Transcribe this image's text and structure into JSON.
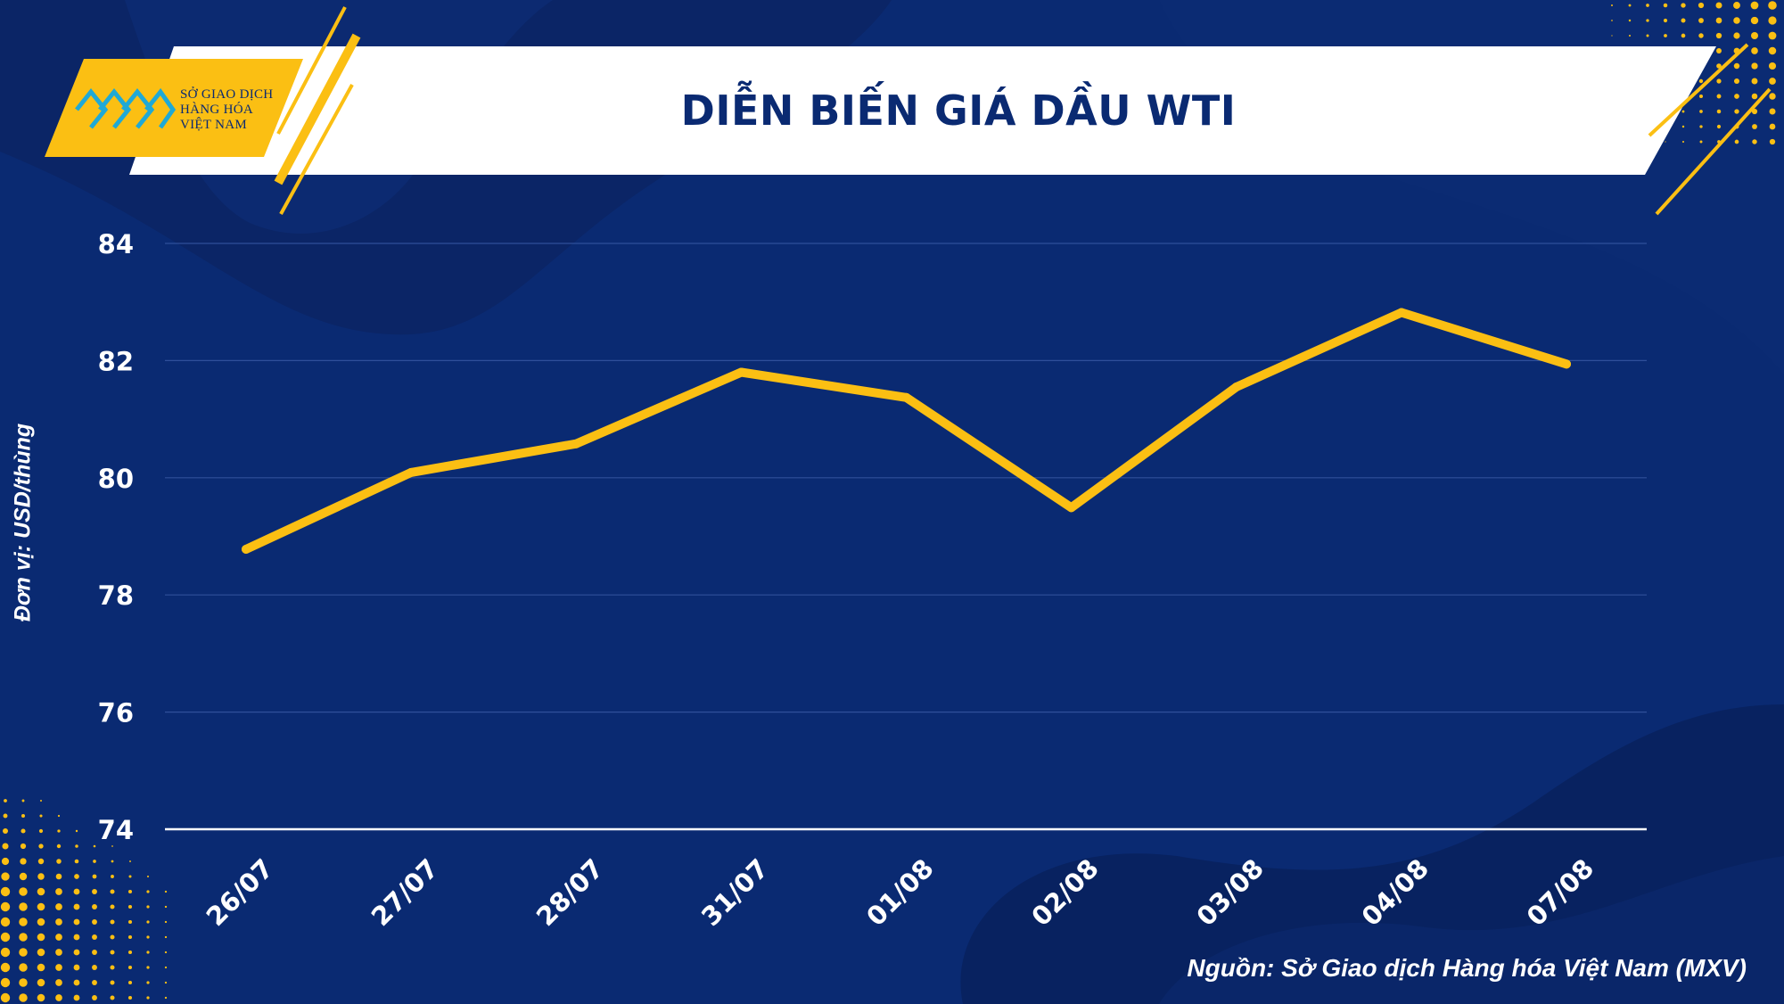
{
  "header": {
    "title": "DIỄN BIẾN GIÁ DẦU WTI",
    "logo_lines": [
      "SỞ GIAO DỊCH",
      "HÀNG HÓA",
      "VIỆT NAM"
    ]
  },
  "footer": {
    "source": "Nguồn: Sở Giao dịch Hàng hóa Việt Nam (MXV)"
  },
  "colors": {
    "background": "#0a2a72",
    "accent": "#fbbf13",
    "line": "#fbbf13",
    "text": "#ffffff",
    "title": "#0a2a72",
    "logo_mark": "#1fa9d6"
  },
  "chart_data": {
    "type": "line",
    "title": "DIỄN BIẾN GIÁ DẦU WTI",
    "xlabel": "",
    "ylabel": "Đơn vị: USD/thùng",
    "categories": [
      "26/07",
      "27/07",
      "28/07",
      "31/07",
      "01/08",
      "02/08",
      "03/08",
      "04/08",
      "07/08"
    ],
    "series": [
      {
        "values": [
          78.78,
          80.09,
          80.58,
          81.8,
          81.37,
          79.49,
          81.55,
          82.82,
          81.94
        ]
      }
    ],
    "ylim": [
      74,
      84
    ],
    "yticks": [
      74,
      76,
      78,
      80,
      82,
      84
    ],
    "grid": true,
    "legend": "none"
  }
}
